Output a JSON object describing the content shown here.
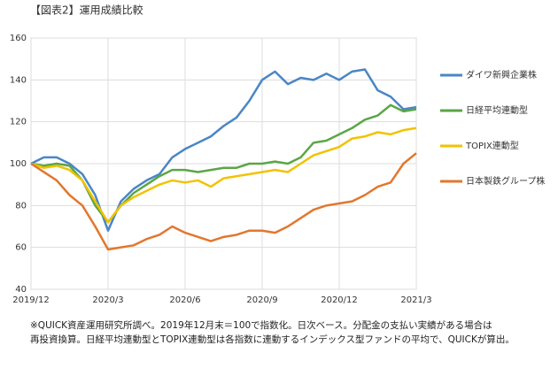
{
  "chart_data": {
    "type": "line",
    "title": "【図表2】運用成績比較",
    "note": [
      "※QUICK資産運用研究所調べ。2019年12月末＝100で指数化。日次ベース。分配金の支払い実績がある場合は",
      "再投資換算。日経平均連動型とTOPIX連動型は各指数に連動するインデックス型ファンドの平均で、QUICKが算出。"
    ],
    "x": [
      0,
      0.5,
      1,
      1.5,
      2,
      2.5,
      3,
      3.5,
      4,
      4.5,
      5,
      5.5,
      6,
      6.5,
      7,
      7.5,
      8,
      8.5,
      9,
      9.5,
      10,
      10.5,
      11,
      11.5,
      12,
      12.5,
      13,
      13.5,
      14,
      14.5,
      15
    ],
    "xlim": [
      0,
      15
    ],
    "xticks": [
      {
        "value": 0,
        "label": "2019/12"
      },
      {
        "value": 3,
        "label": "2020/3"
      },
      {
        "value": 6,
        "label": "2020/6"
      },
      {
        "value": 9,
        "label": "2020/9"
      },
      {
        "value": 12,
        "label": "2020/12"
      },
      {
        "value": 15,
        "label": "2021/3"
      }
    ],
    "ylim": [
      40,
      160
    ],
    "yticks": [
      40,
      60,
      80,
      100,
      120,
      140,
      160
    ],
    "grid": true,
    "legend": "right",
    "series": [
      {
        "name": "ダイワ新興企業株",
        "color": "#4a86c6",
        "values": [
          100,
          103,
          103,
          100,
          95,
          85,
          68,
          82,
          88,
          92,
          95,
          103,
          107,
          110,
          113,
          118,
          122,
          130,
          140,
          144,
          138,
          141,
          140,
          143,
          140,
          144,
          145,
          135,
          132,
          126,
          127
        ]
      },
      {
        "name": "日経平均連動型",
        "color": "#5aa646",
        "values": [
          100,
          99,
          100,
          99,
          92,
          80,
          72,
          80,
          86,
          90,
          94,
          97,
          97,
          96,
          97,
          98,
          98,
          100,
          100,
          101,
          100,
          103,
          110,
          111,
          114,
          117,
          121,
          123,
          128,
          125,
          126
        ]
      },
      {
        "name": "TOPIX連動型",
        "color": "#f2c200",
        "values": [
          100,
          98,
          99,
          97,
          92,
          82,
          72,
          80,
          84,
          87,
          90,
          92,
          91,
          92,
          89,
          93,
          94,
          95,
          96,
          97,
          96,
          100,
          104,
          106,
          108,
          112,
          113,
          115,
          114,
          116,
          117
        ]
      },
      {
        "name": "日本製鉄グループ株",
        "color": "#e2772e",
        "values": [
          100,
          96,
          92,
          85,
          80,
          70,
          59,
          60,
          61,
          64,
          66,
          70,
          67,
          65,
          63,
          65,
          66,
          68,
          68,
          67,
          70,
          74,
          78,
          80,
          81,
          82,
          85,
          89,
          91,
          100,
          105
        ]
      }
    ]
  }
}
